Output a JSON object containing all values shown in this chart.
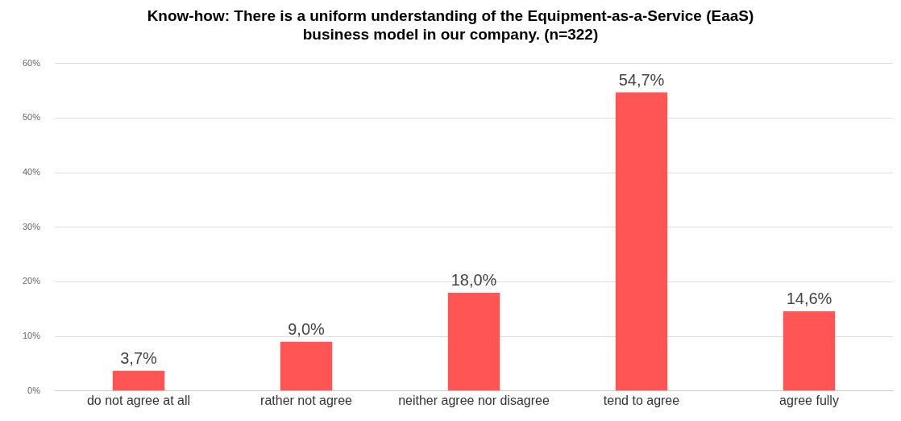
{
  "chart_data": {
    "type": "bar",
    "title": "Know-how: There is a uniform understanding of the Equipment-as-a-Service (EaaS) business model in our company. (n=322)",
    "categories": [
      "do not agree at all",
      "rather not agree",
      "neither agree nor disagree",
      "tend to agree",
      "agree fully"
    ],
    "values": [
      3.7,
      9.0,
      18.0,
      54.7,
      14.6
    ],
    "value_labels": [
      "3,7%",
      "9,0%",
      "18,0%",
      "54,7%",
      "14,6%"
    ],
    "color": "#ff5555",
    "ylim": [
      0,
      60
    ],
    "yticks": [
      {
        "value": 0,
        "label": "0%"
      },
      {
        "value": 10,
        "label": "10%"
      },
      {
        "value": 20,
        "label": "20%"
      },
      {
        "value": 30,
        "label": "30%"
      },
      {
        "value": 40,
        "label": "40%"
      },
      {
        "value": 50,
        "label": "50%"
      },
      {
        "value": 60,
        "label": "60%"
      }
    ],
    "grid": "y",
    "legend": false
  }
}
